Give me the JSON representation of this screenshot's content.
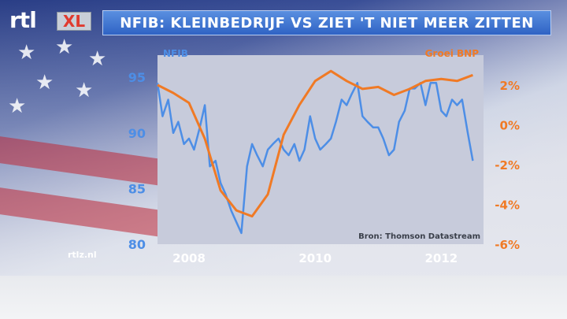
{
  "title": "NFIB: KLEINBEDRIJF VS ZIET 'T NIET MEER ZITTEN",
  "logo": {
    "rtl": "rtl",
    "xl": "XL",
    "name": "rtl-xl-logo"
  },
  "watermark": "rtlz.nl",
  "colors": {
    "nfib": "#4d8ee6",
    "bnp": "#f07a25",
    "title_bar": "#2f63c4",
    "plot_bg": "#c7cbdb"
  },
  "chart_data": {
    "type": "line",
    "source": "Bron: Thomson Datastream",
    "x_ticks": [
      {
        "value": 2008,
        "label": "2008"
      },
      {
        "value": 2010,
        "label": "2010"
      },
      {
        "value": 2012,
        "label": "2012"
      }
    ],
    "xlim": [
      2007.5,
      2012.67
    ],
    "left_axis": {
      "label": "NFIB",
      "ylim": [
        80,
        97
      ],
      "ticks": [
        {
          "value": 80,
          "label": "80"
        },
        {
          "value": 85,
          "label": "85"
        },
        {
          "value": 90,
          "label": "90"
        },
        {
          "value": 95,
          "label": "95"
        }
      ]
    },
    "right_axis": {
      "label": "Groei BNP",
      "ylim": [
        -6,
        3.5
      ],
      "ticks": [
        {
          "value": 2,
          "label": "2%"
        },
        {
          "value": 0,
          "label": "0%"
        },
        {
          "value": -2,
          "label": "-2%"
        },
        {
          "value": -4,
          "label": "-4%"
        },
        {
          "value": -6,
          "label": "-6%"
        }
      ]
    },
    "series": [
      {
        "name": "NFIB",
        "axis": "left",
        "x": [
          2007.5,
          2007.58,
          2007.67,
          2007.75,
          2007.83,
          2007.92,
          2008.0,
          2008.08,
          2008.17,
          2008.25,
          2008.33,
          2008.42,
          2008.5,
          2008.58,
          2008.67,
          2008.75,
          2008.83,
          2008.92,
          2009.0,
          2009.08,
          2009.17,
          2009.25,
          2009.33,
          2009.42,
          2009.5,
          2009.58,
          2009.67,
          2009.75,
          2009.83,
          2009.92,
          2010.0,
          2010.08,
          2010.17,
          2010.25,
          2010.33,
          2010.42,
          2010.5,
          2010.58,
          2010.67,
          2010.75,
          2010.83,
          2010.92,
          2011.0,
          2011.08,
          2011.17,
          2011.25,
          2011.33,
          2011.42,
          2011.5,
          2011.58,
          2011.67,
          2011.75,
          2011.83,
          2011.92,
          2012.0,
          2012.08,
          2012.17,
          2012.25,
          2012.33,
          2012.42,
          2012.5
        ],
        "y": [
          94.5,
          91.5,
          93.0,
          90.0,
          91.0,
          89.0,
          89.5,
          88.5,
          90.5,
          92.5,
          87.0,
          87.5,
          85.5,
          84.5,
          83.0,
          82.0,
          81.0,
          87.0,
          89.0,
          88.0,
          87.0,
          88.5,
          89.0,
          89.5,
          88.5,
          88.0,
          89.0,
          87.5,
          88.5,
          91.5,
          89.5,
          88.5,
          89.0,
          89.5,
          91.0,
          93.0,
          92.5,
          93.5,
          94.5,
          91.5,
          91.0,
          90.5,
          90.5,
          89.5,
          88.0,
          88.5,
          91.0,
          92.0,
          94.0,
          94.0,
          94.5,
          92.5,
          94.5,
          94.5,
          92.0,
          91.5,
          93.0,
          92.5,
          93.0,
          90.0,
          87.5
        ]
      },
      {
        "name": "Groei BNP",
        "axis": "right",
        "x": [
          2007.5,
          2007.75,
          2008.0,
          2008.25,
          2008.5,
          2008.75,
          2009.0,
          2009.25,
          2009.5,
          2009.75,
          2010.0,
          2010.25,
          2010.5,
          2010.75,
          2011.0,
          2011.25,
          2011.5,
          2011.75,
          2012.0,
          2012.25,
          2012.5
        ],
        "y": [
          2.0,
          1.6,
          1.1,
          -0.7,
          -3.3,
          -4.3,
          -4.6,
          -3.5,
          -0.5,
          1.0,
          2.2,
          2.7,
          2.2,
          1.8,
          1.9,
          1.5,
          1.8,
          2.2,
          2.3,
          2.2,
          2.5
        ]
      }
    ]
  }
}
